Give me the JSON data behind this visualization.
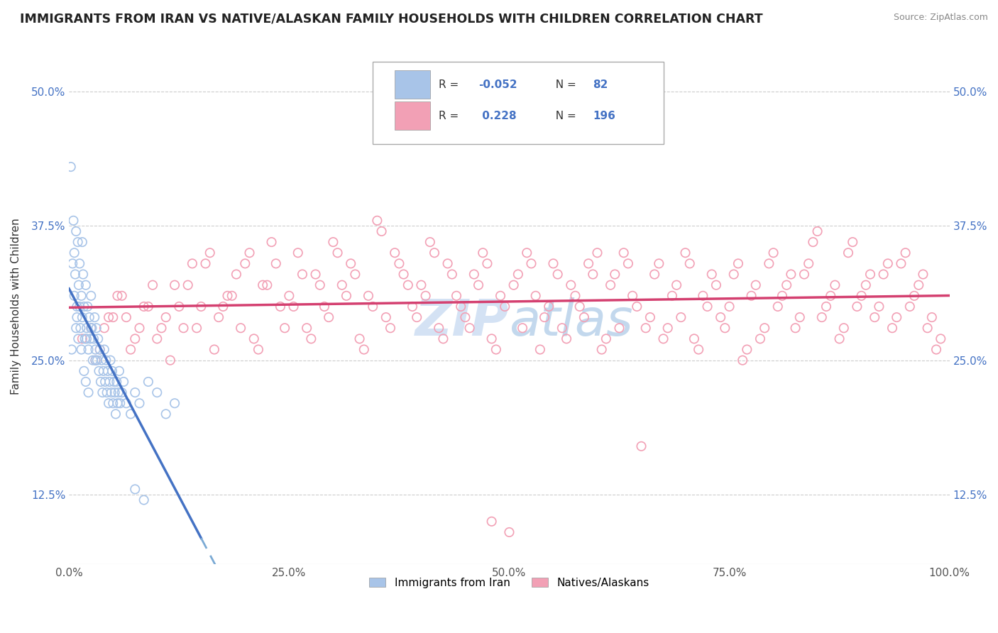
{
  "title": "IMMIGRANTS FROM IRAN VS NATIVE/ALASKAN FAMILY HOUSEHOLDS WITH CHILDREN CORRELATION CHART",
  "source": "Source: ZipAtlas.com",
  "ylabel": "Family Households with Children",
  "xlim": [
    0,
    100
  ],
  "ylim": [
    6,
    54
  ],
  "yticks": [
    12.5,
    25.0,
    37.5,
    50.0
  ],
  "xticks": [
    0,
    25,
    50,
    75,
    100
  ],
  "xtick_labels": [
    "0.0%",
    "25.0%",
    "50.0%",
    "75.0%",
    "100.0%"
  ],
  "ytick_labels": [
    "12.5%",
    "25.0%",
    "37.5%",
    "50.0%"
  ],
  "legend_label1": "Immigrants from Iran",
  "legend_label2": "Natives/Alaskans",
  "color_blue": "#a8c4e8",
  "color_pink": "#f2a0b5",
  "trend_color_blue_solid": "#4472c4",
  "trend_color_blue_dash": "#7baad4",
  "trend_color_pink": "#d44070",
  "background_color": "#ffffff",
  "grid_color": "#cccccc",
  "watermark": "ZIPAtlas",
  "blue_scatter": [
    [
      0.2,
      43
    ],
    [
      0.5,
      38
    ],
    [
      0.6,
      35
    ],
    [
      0.7,
      33
    ],
    [
      0.8,
      37
    ],
    [
      0.9,
      30
    ],
    [
      1.0,
      36
    ],
    [
      1.1,
      32
    ],
    [
      1.2,
      34
    ],
    [
      1.3,
      28
    ],
    [
      1.4,
      31
    ],
    [
      1.5,
      29
    ],
    [
      1.6,
      33
    ],
    [
      1.7,
      30
    ],
    [
      1.8,
      27
    ],
    [
      1.9,
      32
    ],
    [
      2.0,
      28
    ],
    [
      2.1,
      30
    ],
    [
      2.2,
      26
    ],
    [
      2.3,
      29
    ],
    [
      2.4,
      27
    ],
    [
      2.5,
      31
    ],
    [
      2.6,
      28
    ],
    [
      2.7,
      25
    ],
    [
      2.8,
      27
    ],
    [
      2.9,
      29
    ],
    [
      3.0,
      26
    ],
    [
      3.1,
      28
    ],
    [
      3.2,
      25
    ],
    [
      3.3,
      27
    ],
    [
      3.4,
      24
    ],
    [
      3.5,
      26
    ],
    [
      3.6,
      23
    ],
    [
      3.7,
      25
    ],
    [
      3.8,
      22
    ],
    [
      3.9,
      24
    ],
    [
      4.0,
      26
    ],
    [
      4.1,
      23
    ],
    [
      4.2,
      25
    ],
    [
      4.3,
      22
    ],
    [
      4.4,
      24
    ],
    [
      4.5,
      21
    ],
    [
      4.6,
      23
    ],
    [
      4.7,
      25
    ],
    [
      4.8,
      22
    ],
    [
      4.9,
      24
    ],
    [
      5.0,
      21
    ],
    [
      5.1,
      23
    ],
    [
      5.2,
      22
    ],
    [
      5.3,
      20
    ],
    [
      5.4,
      23
    ],
    [
      5.5,
      21
    ],
    [
      5.6,
      22
    ],
    [
      5.7,
      24
    ],
    [
      5.8,
      21
    ],
    [
      6.0,
      22
    ],
    [
      6.2,
      23
    ],
    [
      6.5,
      21
    ],
    [
      7.0,
      20
    ],
    [
      7.5,
      22
    ],
    [
      8.0,
      21
    ],
    [
      9.0,
      23
    ],
    [
      10.0,
      22
    ],
    [
      11.0,
      20
    ],
    [
      12.0,
      21
    ],
    [
      0.3,
      26
    ],
    [
      0.4,
      34
    ],
    [
      1.05,
      27
    ],
    [
      1.5,
      36
    ],
    [
      2.0,
      27
    ],
    [
      2.5,
      28
    ],
    [
      3.0,
      25
    ],
    [
      0.8,
      28
    ],
    [
      1.2,
      30
    ],
    [
      1.7,
      24
    ],
    [
      2.2,
      22
    ],
    [
      0.6,
      31
    ],
    [
      0.9,
      29
    ],
    [
      1.4,
      26
    ],
    [
      1.9,
      23
    ],
    [
      7.5,
      13
    ],
    [
      8.5,
      12
    ]
  ],
  "pink_scatter": [
    [
      1.5,
      27
    ],
    [
      3.0,
      25
    ],
    [
      4.0,
      28
    ],
    [
      5.0,
      29
    ],
    [
      6.0,
      31
    ],
    [
      7.0,
      26
    ],
    [
      8.0,
      28
    ],
    [
      9.0,
      30
    ],
    [
      10.0,
      27
    ],
    [
      11.0,
      29
    ],
    [
      12.0,
      32
    ],
    [
      13.0,
      28
    ],
    [
      14.0,
      34
    ],
    [
      15.0,
      30
    ],
    [
      16.0,
      35
    ],
    [
      17.0,
      29
    ],
    [
      18.0,
      31
    ],
    [
      19.0,
      33
    ],
    [
      20.0,
      34
    ],
    [
      21.0,
      27
    ],
    [
      22.0,
      32
    ],
    [
      23.0,
      36
    ],
    [
      24.0,
      30
    ],
    [
      25.0,
      31
    ],
    [
      26.0,
      35
    ],
    [
      27.0,
      28
    ],
    [
      28.0,
      33
    ],
    [
      29.0,
      30
    ],
    [
      30.0,
      36
    ],
    [
      31.0,
      32
    ],
    [
      32.0,
      34
    ],
    [
      33.0,
      27
    ],
    [
      34.0,
      31
    ],
    [
      35.0,
      38
    ],
    [
      36.0,
      29
    ],
    [
      37.0,
      35
    ],
    [
      38.0,
      33
    ],
    [
      39.0,
      30
    ],
    [
      40.0,
      32
    ],
    [
      41.0,
      36
    ],
    [
      42.0,
      28
    ],
    [
      43.0,
      34
    ],
    [
      44.0,
      31
    ],
    [
      45.0,
      29
    ],
    [
      46.0,
      33
    ],
    [
      47.0,
      35
    ],
    [
      48.0,
      27
    ],
    [
      49.0,
      31
    ],
    [
      51.0,
      33
    ],
    [
      52.0,
      35
    ],
    [
      53.0,
      31
    ],
    [
      54.0,
      29
    ],
    [
      55.0,
      34
    ],
    [
      56.0,
      28
    ],
    [
      57.0,
      32
    ],
    [
      58.0,
      30
    ],
    [
      59.0,
      34
    ],
    [
      60.0,
      35
    ],
    [
      61.0,
      27
    ],
    [
      62.0,
      33
    ],
    [
      63.0,
      35
    ],
    [
      64.0,
      31
    ],
    [
      66.0,
      29
    ],
    [
      67.0,
      34
    ],
    [
      68.0,
      28
    ],
    [
      69.0,
      32
    ],
    [
      70.0,
      35
    ],
    [
      71.0,
      27
    ],
    [
      72.0,
      31
    ],
    [
      73.0,
      33
    ],
    [
      74.0,
      29
    ],
    [
      75.0,
      30
    ],
    [
      76.0,
      34
    ],
    [
      77.0,
      26
    ],
    [
      78.0,
      32
    ],
    [
      79.0,
      28
    ],
    [
      80.0,
      35
    ],
    [
      81.0,
      31
    ],
    [
      82.0,
      33
    ],
    [
      83.0,
      29
    ],
    [
      84.0,
      34
    ],
    [
      85.0,
      37
    ],
    [
      86.0,
      30
    ],
    [
      87.0,
      32
    ],
    [
      88.0,
      28
    ],
    [
      89.0,
      36
    ],
    [
      90.0,
      31
    ],
    [
      91.0,
      33
    ],
    [
      92.0,
      30
    ],
    [
      93.0,
      34
    ],
    [
      94.0,
      29
    ],
    [
      95.0,
      35
    ],
    [
      96.0,
      31
    ],
    [
      97.0,
      33
    ],
    [
      98.0,
      29
    ],
    [
      99.0,
      27
    ],
    [
      2.5,
      28
    ],
    [
      3.5,
      26
    ],
    [
      4.5,
      29
    ],
    [
      5.5,
      31
    ],
    [
      6.5,
      29
    ],
    [
      7.5,
      27
    ],
    [
      8.5,
      30
    ],
    [
      9.5,
      32
    ],
    [
      10.5,
      28
    ],
    [
      11.5,
      25
    ],
    [
      12.5,
      30
    ],
    [
      13.5,
      32
    ],
    [
      14.5,
      28
    ],
    [
      15.5,
      34
    ],
    [
      16.5,
      26
    ],
    [
      17.5,
      30
    ],
    [
      18.5,
      31
    ],
    [
      19.5,
      28
    ],
    [
      20.5,
      35
    ],
    [
      21.5,
      26
    ],
    [
      22.5,
      32
    ],
    [
      23.5,
      34
    ],
    [
      24.5,
      28
    ],
    [
      25.5,
      30
    ],
    [
      26.5,
      33
    ],
    [
      27.5,
      27
    ],
    [
      28.5,
      32
    ],
    [
      29.5,
      29
    ],
    [
      30.5,
      35
    ],
    [
      31.5,
      31
    ],
    [
      32.5,
      33
    ],
    [
      33.5,
      26
    ],
    [
      34.5,
      30
    ],
    [
      35.5,
      37
    ],
    [
      36.5,
      28
    ],
    [
      37.5,
      34
    ],
    [
      38.5,
      32
    ],
    [
      39.5,
      29
    ],
    [
      40.5,
      31
    ],
    [
      41.5,
      35
    ],
    [
      42.5,
      27
    ],
    [
      43.5,
      33
    ],
    [
      44.5,
      30
    ],
    [
      45.5,
      28
    ],
    [
      46.5,
      32
    ],
    [
      47.5,
      34
    ],
    [
      48.5,
      26
    ],
    [
      49.5,
      30
    ],
    [
      50.5,
      32
    ],
    [
      51.5,
      28
    ],
    [
      52.5,
      34
    ],
    [
      53.5,
      26
    ],
    [
      54.5,
      30
    ],
    [
      55.5,
      33
    ],
    [
      56.5,
      27
    ],
    [
      57.5,
      31
    ],
    [
      58.5,
      29
    ],
    [
      59.5,
      33
    ],
    [
      60.5,
      26
    ],
    [
      61.5,
      32
    ],
    [
      62.5,
      28
    ],
    [
      63.5,
      34
    ],
    [
      64.5,
      30
    ],
    [
      65.5,
      28
    ],
    [
      66.5,
      33
    ],
    [
      67.5,
      27
    ],
    [
      68.5,
      31
    ],
    [
      69.5,
      29
    ],
    [
      70.5,
      34
    ],
    [
      71.5,
      26
    ],
    [
      72.5,
      30
    ],
    [
      73.5,
      32
    ],
    [
      74.5,
      28
    ],
    [
      75.5,
      33
    ],
    [
      76.5,
      25
    ],
    [
      77.5,
      31
    ],
    [
      78.5,
      27
    ],
    [
      79.5,
      34
    ],
    [
      80.5,
      30
    ],
    [
      81.5,
      32
    ],
    [
      82.5,
      28
    ],
    [
      83.5,
      33
    ],
    [
      84.5,
      36
    ],
    [
      85.5,
      29
    ],
    [
      86.5,
      31
    ],
    [
      87.5,
      27
    ],
    [
      88.5,
      35
    ],
    [
      89.5,
      30
    ],
    [
      90.5,
      32
    ],
    [
      91.5,
      29
    ],
    [
      92.5,
      33
    ],
    [
      93.5,
      28
    ],
    [
      94.5,
      34
    ],
    [
      95.5,
      30
    ],
    [
      96.5,
      32
    ],
    [
      97.5,
      28
    ],
    [
      98.5,
      26
    ],
    [
      50.0,
      9
    ],
    [
      48.0,
      10
    ],
    [
      65.0,
      17
    ]
  ]
}
